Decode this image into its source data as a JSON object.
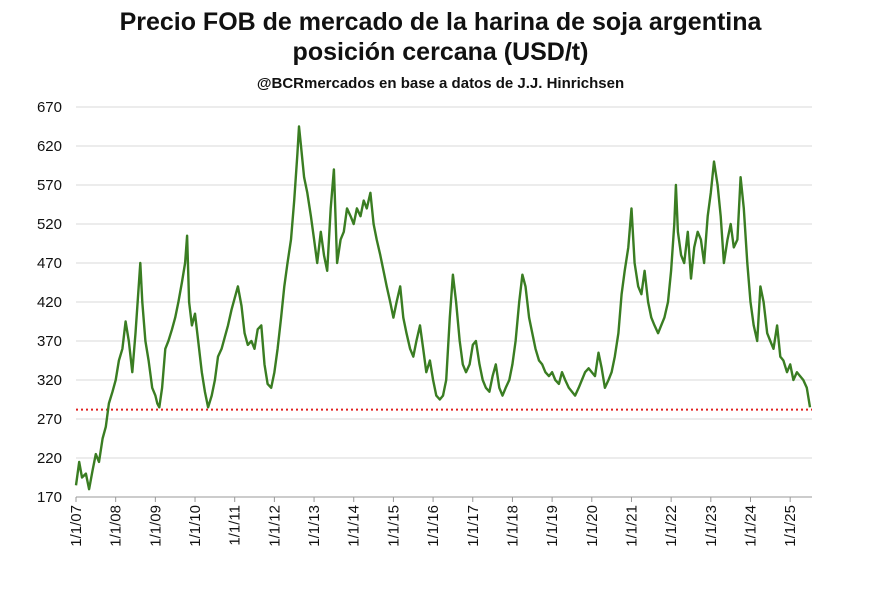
{
  "chart_data": {
    "type": "line",
    "title": "Precio FOB de mercado de la harina de soja argentina",
    "subtitle": "posición cercana (USD/t)",
    "source": "@BCRmercados en base a datos de J.J. Hinrichsen",
    "xlabel": "",
    "ylabel": "",
    "ylim": [
      170,
      670
    ],
    "yticks": [
      "170",
      "220",
      "270",
      "320",
      "370",
      "420",
      "470",
      "520",
      "570",
      "620",
      "670"
    ],
    "xlim": [
      2007.0,
      2025.55
    ],
    "xticks": [
      "1/1/07",
      "1/1/08",
      "1/1/09",
      "1/1/10",
      "1/1/11",
      "1/1/12",
      "1/1/13",
      "1/1/14",
      "1/1/15",
      "1/1/16",
      "1/1/17",
      "1/1/18",
      "1/1/19",
      "1/1/20",
      "1/1/21",
      "1/1/22",
      "1/1/23",
      "1/1/24",
      "1/1/25"
    ],
    "grid": true,
    "series": [
      {
        "color": "#3a7d22",
        "points": [
          [
            2007.0,
            185
          ],
          [
            2007.08,
            215
          ],
          [
            2007.15,
            195
          ],
          [
            2007.25,
            200
          ],
          [
            2007.33,
            180
          ],
          [
            2007.42,
            205
          ],
          [
            2007.5,
            225
          ],
          [
            2007.58,
            215
          ],
          [
            2007.67,
            245
          ],
          [
            2007.75,
            260
          ],
          [
            2007.83,
            290
          ],
          [
            2007.92,
            305
          ],
          [
            2008.0,
            320
          ],
          [
            2008.08,
            345
          ],
          [
            2008.17,
            360
          ],
          [
            2008.25,
            395
          ],
          [
            2008.33,
            370
          ],
          [
            2008.42,
            330
          ],
          [
            2008.5,
            380
          ],
          [
            2008.58,
            440
          ],
          [
            2008.62,
            470
          ],
          [
            2008.67,
            420
          ],
          [
            2008.75,
            370
          ],
          [
            2008.83,
            345
          ],
          [
            2008.92,
            310
          ],
          [
            2009.0,
            300
          ],
          [
            2009.05,
            290
          ],
          [
            2009.1,
            285
          ],
          [
            2009.17,
            310
          ],
          [
            2009.25,
            360
          ],
          [
            2009.33,
            370
          ],
          [
            2009.42,
            385
          ],
          [
            2009.5,
            400
          ],
          [
            2009.58,
            420
          ],
          [
            2009.67,
            445
          ],
          [
            2009.75,
            470
          ],
          [
            2009.8,
            505
          ],
          [
            2009.85,
            420
          ],
          [
            2009.92,
            390
          ],
          [
            2010.0,
            405
          ],
          [
            2010.08,
            370
          ],
          [
            2010.17,
            330
          ],
          [
            2010.25,
            305
          ],
          [
            2010.33,
            285
          ],
          [
            2010.42,
            300
          ],
          [
            2010.5,
            320
          ],
          [
            2010.58,
            350
          ],
          [
            2010.67,
            360
          ],
          [
            2010.75,
            375
          ],
          [
            2010.83,
            390
          ],
          [
            2010.92,
            410
          ],
          [
            2011.0,
            425
          ],
          [
            2011.08,
            440
          ],
          [
            2011.17,
            415
          ],
          [
            2011.25,
            380
          ],
          [
            2011.33,
            365
          ],
          [
            2011.42,
            370
          ],
          [
            2011.5,
            360
          ],
          [
            2011.58,
            385
          ],
          [
            2011.67,
            390
          ],
          [
            2011.75,
            340
          ],
          [
            2011.83,
            315
          ],
          [
            2011.92,
            310
          ],
          [
            2012.0,
            330
          ],
          [
            2012.08,
            360
          ],
          [
            2012.17,
            400
          ],
          [
            2012.25,
            440
          ],
          [
            2012.33,
            470
          ],
          [
            2012.42,
            500
          ],
          [
            2012.5,
            550
          ],
          [
            2012.58,
            610
          ],
          [
            2012.62,
            645
          ],
          [
            2012.67,
            620
          ],
          [
            2012.75,
            580
          ],
          [
            2012.83,
            560
          ],
          [
            2012.92,
            530
          ],
          [
            2013.0,
            500
          ],
          [
            2013.08,
            470
          ],
          [
            2013.17,
            510
          ],
          [
            2013.25,
            480
          ],
          [
            2013.33,
            460
          ],
          [
            2013.42,
            540
          ],
          [
            2013.5,
            590
          ],
          [
            2013.58,
            470
          ],
          [
            2013.67,
            500
          ],
          [
            2013.75,
            510
          ],
          [
            2013.83,
            540
          ],
          [
            2013.92,
            530
          ],
          [
            2014.0,
            520
          ],
          [
            2014.08,
            540
          ],
          [
            2014.17,
            530
          ],
          [
            2014.25,
            550
          ],
          [
            2014.33,
            540
          ],
          [
            2014.42,
            560
          ],
          [
            2014.5,
            520
          ],
          [
            2014.58,
            500
          ],
          [
            2014.67,
            480
          ],
          [
            2014.75,
            460
          ],
          [
            2014.83,
            440
          ],
          [
            2014.92,
            420
          ],
          [
            2015.0,
            400
          ],
          [
            2015.08,
            420
          ],
          [
            2015.17,
            440
          ],
          [
            2015.25,
            400
          ],
          [
            2015.33,
            380
          ],
          [
            2015.42,
            360
          ],
          [
            2015.5,
            350
          ],
          [
            2015.58,
            370
          ],
          [
            2015.67,
            390
          ],
          [
            2015.75,
            360
          ],
          [
            2015.83,
            330
          ],
          [
            2015.92,
            345
          ],
          [
            2016.0,
            320
          ],
          [
            2016.08,
            300
          ],
          [
            2016.17,
            295
          ],
          [
            2016.25,
            300
          ],
          [
            2016.33,
            320
          ],
          [
            2016.42,
            400
          ],
          [
            2016.5,
            455
          ],
          [
            2016.58,
            420
          ],
          [
            2016.67,
            370
          ],
          [
            2016.75,
            340
          ],
          [
            2016.83,
            330
          ],
          [
            2016.92,
            340
          ],
          [
            2017.0,
            365
          ],
          [
            2017.08,
            370
          ],
          [
            2017.17,
            340
          ],
          [
            2017.25,
            320
          ],
          [
            2017.33,
            310
          ],
          [
            2017.42,
            305
          ],
          [
            2017.5,
            325
          ],
          [
            2017.58,
            340
          ],
          [
            2017.67,
            310
          ],
          [
            2017.75,
            300
          ],
          [
            2017.83,
            310
          ],
          [
            2017.92,
            320
          ],
          [
            2018.0,
            340
          ],
          [
            2018.08,
            370
          ],
          [
            2018.17,
            420
          ],
          [
            2018.25,
            455
          ],
          [
            2018.33,
            440
          ],
          [
            2018.42,
            400
          ],
          [
            2018.5,
            380
          ],
          [
            2018.58,
            360
          ],
          [
            2018.67,
            345
          ],
          [
            2018.75,
            340
          ],
          [
            2018.83,
            330
          ],
          [
            2018.92,
            325
          ],
          [
            2019.0,
            330
          ],
          [
            2019.08,
            320
          ],
          [
            2019.17,
            315
          ],
          [
            2019.25,
            330
          ],
          [
            2019.33,
            320
          ],
          [
            2019.42,
            310
          ],
          [
            2019.5,
            305
          ],
          [
            2019.58,
            300
          ],
          [
            2019.67,
            310
          ],
          [
            2019.75,
            320
          ],
          [
            2019.83,
            330
          ],
          [
            2019.92,
            335
          ],
          [
            2020.0,
            330
          ],
          [
            2020.08,
            325
          ],
          [
            2020.17,
            355
          ],
          [
            2020.25,
            335
          ],
          [
            2020.33,
            310
          ],
          [
            2020.42,
            320
          ],
          [
            2020.5,
            330
          ],
          [
            2020.58,
            350
          ],
          [
            2020.67,
            380
          ],
          [
            2020.75,
            430
          ],
          [
            2020.83,
            460
          ],
          [
            2020.92,
            490
          ],
          [
            2021.0,
            540
          ],
          [
            2021.08,
            470
          ],
          [
            2021.17,
            440
          ],
          [
            2021.25,
            430
          ],
          [
            2021.33,
            460
          ],
          [
            2021.42,
            420
          ],
          [
            2021.5,
            400
          ],
          [
            2021.58,
            390
          ],
          [
            2021.67,
            380
          ],
          [
            2021.75,
            390
          ],
          [
            2021.83,
            400
          ],
          [
            2021.92,
            420
          ],
          [
            2022.0,
            460
          ],
          [
            2022.08,
            520
          ],
          [
            2022.12,
            570
          ],
          [
            2022.17,
            510
          ],
          [
            2022.25,
            480
          ],
          [
            2022.33,
            470
          ],
          [
            2022.42,
            510
          ],
          [
            2022.5,
            450
          ],
          [
            2022.58,
            490
          ],
          [
            2022.67,
            510
          ],
          [
            2022.75,
            500
          ],
          [
            2022.83,
            470
          ],
          [
            2022.92,
            530
          ],
          [
            2023.0,
            560
          ],
          [
            2023.08,
            600
          ],
          [
            2023.17,
            570
          ],
          [
            2023.25,
            530
          ],
          [
            2023.33,
            470
          ],
          [
            2023.42,
            500
          ],
          [
            2023.5,
            520
          ],
          [
            2023.58,
            490
          ],
          [
            2023.67,
            500
          ],
          [
            2023.75,
            580
          ],
          [
            2023.83,
            540
          ],
          [
            2023.92,
            470
          ],
          [
            2024.0,
            420
          ],
          [
            2024.08,
            390
          ],
          [
            2024.17,
            370
          ],
          [
            2024.25,
            440
          ],
          [
            2024.33,
            420
          ],
          [
            2024.42,
            380
          ],
          [
            2024.5,
            370
          ],
          [
            2024.58,
            360
          ],
          [
            2024.67,
            390
          ],
          [
            2024.75,
            350
          ],
          [
            2024.83,
            345
          ],
          [
            2024.92,
            330
          ],
          [
            2025.0,
            340
          ],
          [
            2025.08,
            320
          ],
          [
            2025.17,
            330
          ],
          [
            2025.25,
            325
          ],
          [
            2025.33,
            320
          ],
          [
            2025.42,
            310
          ],
          [
            2025.5,
            285
          ]
        ]
      }
    ],
    "reference_line": {
      "y": 282,
      "color": "#e02020",
      "style": "dotted"
    }
  }
}
